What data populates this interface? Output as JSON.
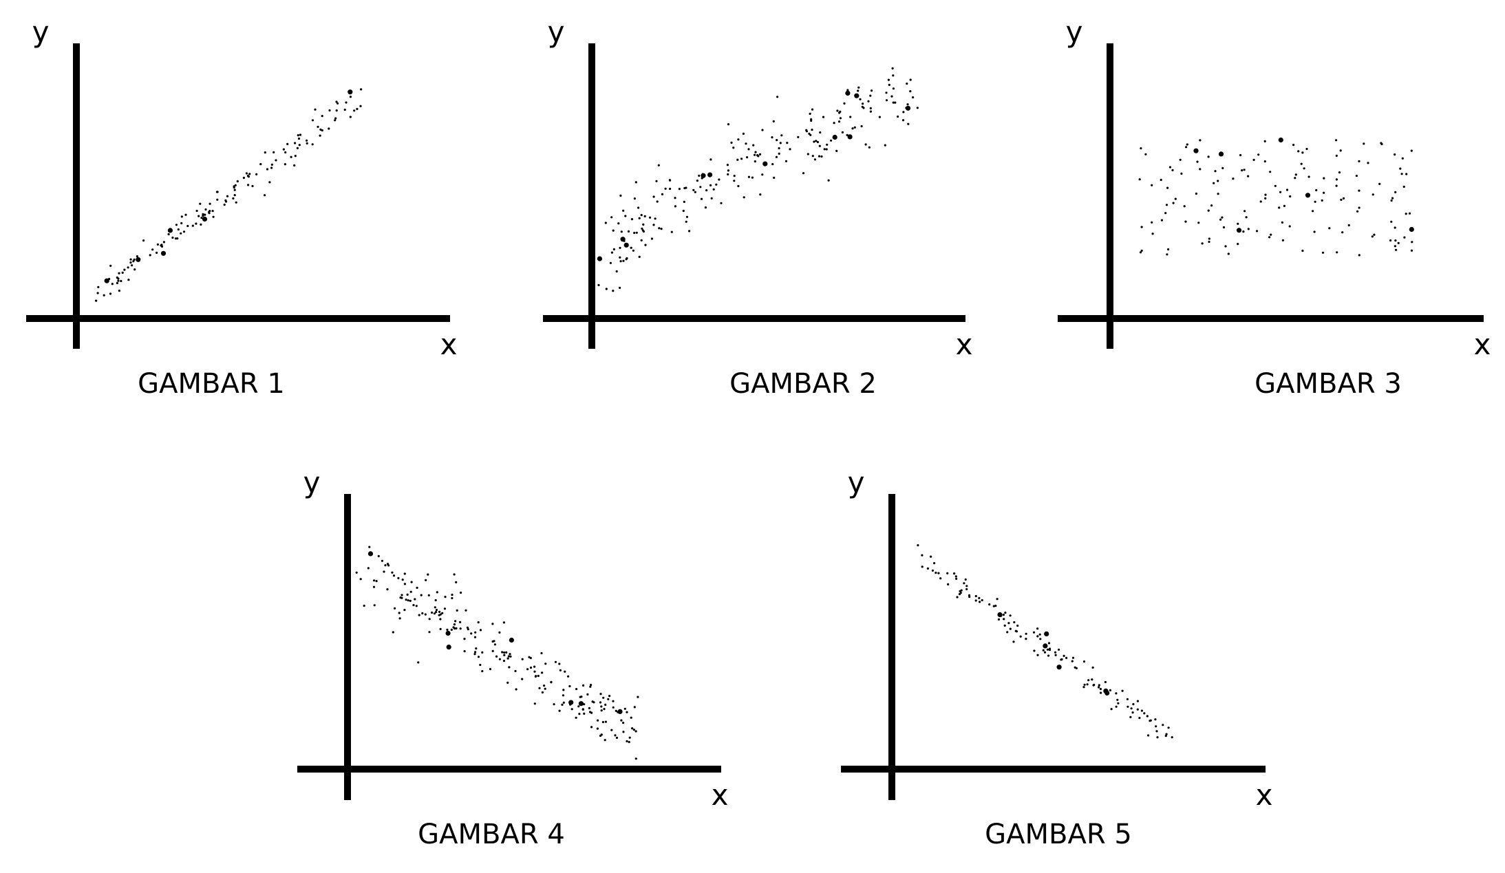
{
  "chart_data": [
    {
      "type": "scatter",
      "title": "GAMBAR 1",
      "xlabel": "x",
      "ylabel": "y",
      "xlim": [
        0,
        10
      ],
      "ylim": [
        0,
        10
      ],
      "grid": false,
      "trend": {
        "direction": "positive",
        "strength": "strong",
        "shape": "linear"
      },
      "x_range": [
        0.5,
        8.0
      ],
      "y_at_x_range": [
        0.9,
        8.1
      ],
      "noise_sd": 0.25,
      "n_points": 140,
      "seed": 11
    },
    {
      "type": "scatter",
      "title": "GAMBAR 2",
      "xlabel": "x",
      "ylabel": "y",
      "xlim": [
        0,
        10
      ],
      "ylim": [
        0,
        10
      ],
      "grid": false,
      "trend": {
        "direction": "positive",
        "strength": "moderate",
        "shape": "curved"
      },
      "x_range": [
        0.3,
        8.9
      ],
      "y_at_x_range": [
        1.4,
        7.9
      ],
      "noise_sd": 0.65,
      "n_points": 220,
      "seed": 23
    },
    {
      "type": "scatter",
      "title": "GAMBAR 3",
      "xlabel": "x",
      "ylabel": "y",
      "xlim": [
        0,
        10
      ],
      "ylim": [
        0,
        10
      ],
      "grid": false,
      "trend": {
        "direction": "none",
        "strength": "none",
        "shape": "uniform"
      },
      "x_range": [
        0.8,
        8.5
      ],
      "y_at_x_range": [
        2.3,
        6.5
      ],
      "noise_sd": 0,
      "n_points": 150,
      "seed": 37
    },
    {
      "type": "scatter",
      "title": "GAMBAR 4",
      "xlabel": "x",
      "ylabel": "y",
      "xlim": [
        0,
        10
      ],
      "ylim": [
        0,
        10
      ],
      "grid": false,
      "trend": {
        "direction": "negative",
        "strength": "moderate",
        "shape": "linear"
      },
      "x_range": [
        0.5,
        8.0
      ],
      "y_at_x_range": [
        7.3,
        1.3
      ],
      "noise_sd": 0.55,
      "n_points": 220,
      "seed": 41
    },
    {
      "type": "scatter",
      "title": "GAMBAR 5",
      "xlabel": "x",
      "ylabel": "y",
      "xlim": [
        0,
        10
      ],
      "ylim": [
        0,
        10
      ],
      "grid": false,
      "trend": {
        "direction": "negative",
        "strength": "strong",
        "shape": "linear"
      },
      "x_range": [
        0.7,
        8.0
      ],
      "y_at_x_range": [
        7.8,
        0.9
      ],
      "noise_sd": 0.22,
      "n_points": 130,
      "seed": 53
    }
  ]
}
